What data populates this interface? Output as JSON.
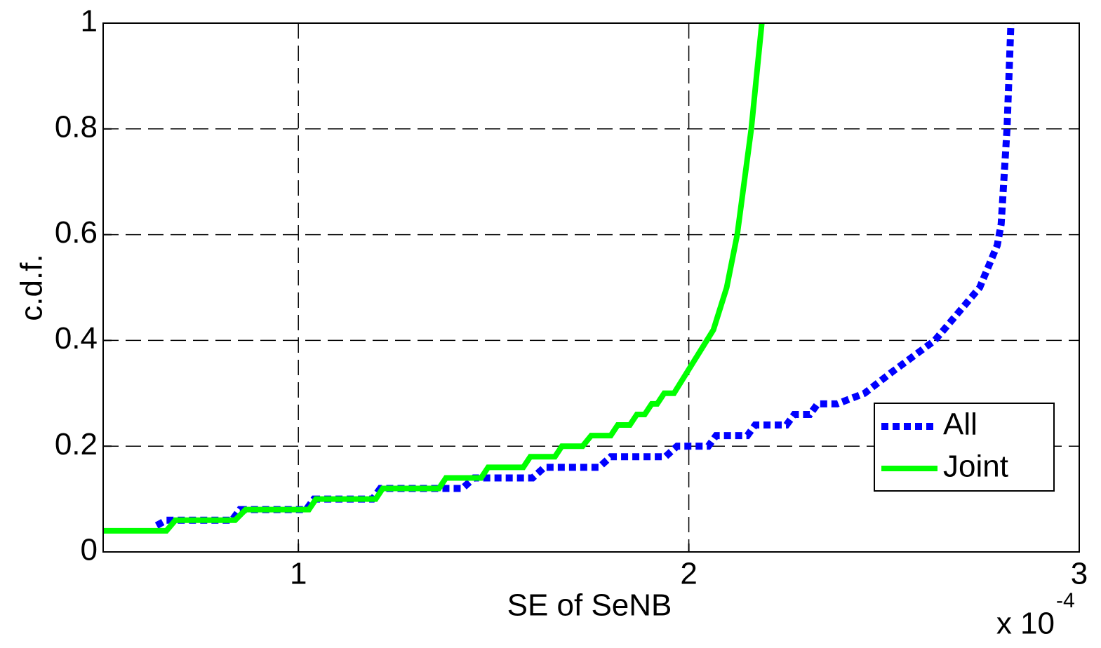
{
  "chart_data": {
    "type": "line",
    "xlabel": "SE of SeNB",
    "ylabel": "c.d.f.",
    "x_multiplier": {
      "base": "x 10",
      "exponent": "-4"
    },
    "xlim": [
      0.5,
      3
    ],
    "xticks": [
      1,
      2,
      3
    ],
    "ylim": [
      0,
      1
    ],
    "yticks": [
      0,
      0.2,
      0.4,
      0.6,
      0.8,
      1
    ],
    "grid": true,
    "legend_position": "lower right",
    "series": [
      {
        "name": "All",
        "color": "#0000ff",
        "style": "dotted",
        "x": [
          0.637,
          0.662,
          0.83,
          0.85,
          1.02,
          1.04,
          1.19,
          1.21,
          1.42,
          1.45,
          1.6,
          1.63,
          1.77,
          1.8,
          1.94,
          1.97,
          2.05,
          2.07,
          2.15,
          2.17,
          2.25,
          2.27,
          2.31,
          2.33,
          2.38,
          2.45,
          2.52,
          2.63,
          2.745,
          2.79,
          2.8,
          2.815,
          2.825
        ],
        "values": [
          0.05,
          0.06,
          0.06,
          0.08,
          0.08,
          0.1,
          0.1,
          0.12,
          0.12,
          0.14,
          0.14,
          0.16,
          0.16,
          0.18,
          0.18,
          0.2,
          0.2,
          0.22,
          0.22,
          0.24,
          0.24,
          0.26,
          0.26,
          0.28,
          0.28,
          0.3,
          0.34,
          0.4,
          0.5,
          0.58,
          0.62,
          0.8,
          1
        ]
      },
      {
        "name": "Joint",
        "color": "#00ff00",
        "style": "solid",
        "x": [
          0.5,
          0.662,
          0.685,
          0.838,
          0.865,
          1.027,
          1.045,
          1.198,
          1.216,
          1.36,
          1.378,
          1.468,
          1.486,
          1.576,
          1.594,
          1.657,
          1.675,
          1.728,
          1.75,
          1.8,
          1.818,
          1.849,
          1.867,
          1.887,
          1.905,
          1.919,
          1.937,
          1.962,
          2.063,
          2.097,
          2.124,
          2.16,
          2.187
        ],
        "values": [
          0.04,
          0.04,
          0.06,
          0.06,
          0.08,
          0.08,
          0.1,
          0.1,
          0.12,
          0.12,
          0.14,
          0.14,
          0.16,
          0.16,
          0.18,
          0.18,
          0.2,
          0.2,
          0.22,
          0.22,
          0.24,
          0.24,
          0.26,
          0.26,
          0.28,
          0.28,
          0.3,
          0.3,
          0.42,
          0.5,
          0.6,
          0.8,
          1
        ]
      }
    ]
  }
}
